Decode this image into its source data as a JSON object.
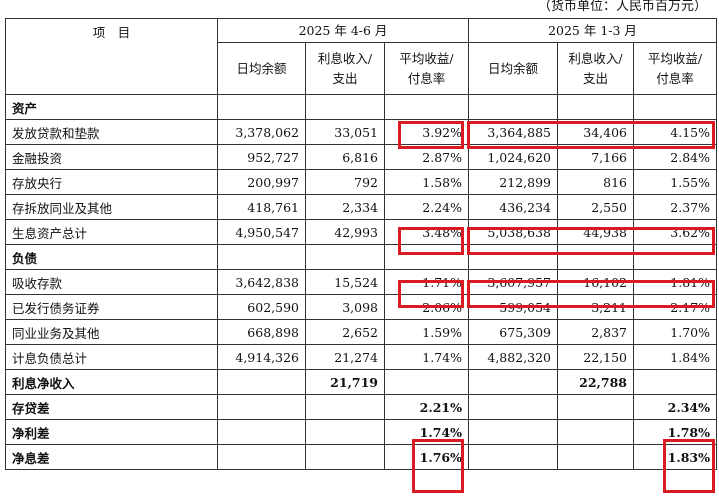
{
  "unit_note": "（货币单位：人民币百万元）",
  "header": {
    "item": "项　目",
    "period_q2": "2025 年 4-6 月",
    "period_q1": "2025 年 1-3 月",
    "avg_balance": "日均余额",
    "interest_line1": "利息收入/",
    "interest_line2": "支出",
    "rate_line1": "平均收益/",
    "rate_line2": "付息率"
  },
  "rows": [
    {
      "label": "资产",
      "section": true
    },
    {
      "label": "发放贷款和垫款",
      "q2": [
        "3,378,062",
        "33,051",
        "3.92%"
      ],
      "q1": [
        "3,364,885",
        "34,406",
        "4.15%"
      ]
    },
    {
      "label": "金融投资",
      "q2": [
        "952,727",
        "6,816",
        "2.87%"
      ],
      "q1": [
        "1,024,620",
        "7,166",
        "2.84%"
      ]
    },
    {
      "label": "存放央行",
      "q2": [
        "200,997",
        "792",
        "1.58%"
      ],
      "q1": [
        "212,899",
        "816",
        "1.55%"
      ]
    },
    {
      "label": "存拆放同业及其他",
      "q2": [
        "418,761",
        "2,334",
        "2.24%"
      ],
      "q1": [
        "436,234",
        "2,550",
        "2.37%"
      ]
    },
    {
      "label": "生息资产总计",
      "q2": [
        "4,950,547",
        "42,993",
        "3.48%"
      ],
      "q1": [
        "5,038,638",
        "44,938",
        "3.62%"
      ]
    },
    {
      "label": "负债",
      "section": true
    },
    {
      "label": "吸收存款",
      "q2": [
        "3,642,838",
        "15,524",
        "1.71%"
      ],
      "q1": [
        "3,607,957",
        "16,102",
        "1.81%"
      ]
    },
    {
      "label": "已发行债务证券",
      "q2": [
        "602,590",
        "3,098",
        "2.06%"
      ],
      "q1": [
        "599,054",
        "3,211",
        "2.17%"
      ]
    },
    {
      "label": "同业业务及其他",
      "q2": [
        "668,898",
        "2,652",
        "1.59%"
      ],
      "q1": [
        "675,309",
        "2,837",
        "1.70%"
      ]
    },
    {
      "label": "计息负债总计",
      "q2": [
        "4,914,326",
        "21,274",
        "1.74%"
      ],
      "q1": [
        "4,882,320",
        "22,150",
        "1.84%"
      ]
    },
    {
      "label": "利息净收入",
      "bold": true,
      "q2": [
        "",
        "21,719",
        ""
      ],
      "q1": [
        "",
        "22,788",
        ""
      ]
    },
    {
      "label": "存贷差",
      "bold": true,
      "q2": [
        "",
        "",
        "2.21%"
      ],
      "q1": [
        "",
        "",
        "2.34%"
      ]
    },
    {
      "label": "净利差",
      "bold": true,
      "q2": [
        "",
        "",
        "1.74%"
      ],
      "q1": [
        "",
        "",
        "1.78%"
      ]
    },
    {
      "label": "净息差",
      "bold": true,
      "q2": [
        "",
        "",
        "1.76%"
      ],
      "q1": [
        "",
        "",
        "1.83%"
      ]
    }
  ],
  "highlight_color": "#d81b22"
}
